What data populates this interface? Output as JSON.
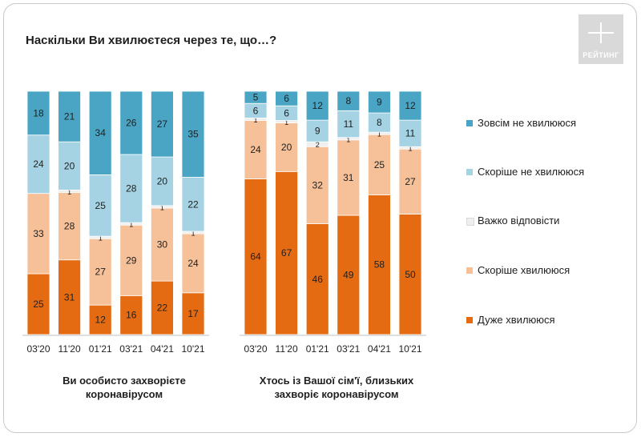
{
  "title": "Наскільки Ви хвилюєтеся через те, що…?",
  "logo": {
    "text": "РЕЙТИНГ",
    "icon": "rating-logo-icon"
  },
  "chart_data": {
    "type": "bar",
    "stacked": true,
    "value_unit": "%",
    "groups": [
      {
        "label": "Ви особисто захворієте коронавірусом",
        "categories": [
          "03'20",
          "11'20",
          "01'21",
          "03'21",
          "04'21",
          "10'21"
        ],
        "series": [
          {
            "name": "Дуже хвилююся",
            "values": [
              25,
              31,
              12,
              16,
              22,
              17
            ]
          },
          {
            "name": "Скоріше хвилююся",
            "values": [
              33,
              28,
              27,
              29,
              30,
              24
            ]
          },
          {
            "name": "Важко відповісти",
            "values": [
              0,
              1,
              1,
              1,
              1,
              1
            ]
          },
          {
            "name": "Скоріше не хвилююся",
            "values": [
              24,
              20,
              25,
              28,
              20,
              22
            ]
          },
          {
            "name": "Зовсім не хвилююся",
            "values": [
              18,
              21,
              34,
              26,
              27,
              35
            ]
          }
        ]
      },
      {
        "label": "Хтось із Вашої сім'ї, близьких захворіє коронавірусом",
        "categories": [
          "03'20",
          "11'20",
          "01'21",
          "03'21",
          "04'21",
          "10'21"
        ],
        "series": [
          {
            "name": "Дуже хвилююся",
            "values": [
              64,
              67,
              46,
              49,
              58,
              50
            ]
          },
          {
            "name": "Скоріше хвилююся",
            "values": [
              24,
              20,
              32,
              31,
              25,
              27
            ]
          },
          {
            "name": "Важко відповісти",
            "values": [
              1,
              1,
              2,
              1,
              1,
              1
            ]
          },
          {
            "name": "Скоріше не хвилююся",
            "values": [
              6,
              6,
              9,
              11,
              8,
              11
            ]
          },
          {
            "name": "Зовсім не хвилююся",
            "values": [
              5,
              6,
              12,
              8,
              9,
              12
            ]
          }
        ]
      }
    ],
    "legend": {
      "position": "right",
      "items": [
        {
          "name": "Зовсім не хвилююся",
          "color": "#4aa5c4"
        },
        {
          "name": "Скоріше не хвилююся",
          "color": "#a5d3e3"
        },
        {
          "name": "Важко відповісти",
          "color": "#efefef"
        },
        {
          "name": "Скоріше хвилююся",
          "color": "#f6c199"
        },
        {
          "name": "Дуже хвилююся",
          "color": "#e56b12"
        }
      ]
    },
    "colors": {
      "Дуже хвилююся": "#e56b12",
      "Скоріше хвилююся": "#f6c199",
      "Важко відповісти": "#efefef",
      "Скоріше не хвилююся": "#a5d3e3",
      "Зовсім не хвилююся": "#4aa5c4"
    },
    "ylim": [
      0,
      100
    ],
    "grid": false
  }
}
